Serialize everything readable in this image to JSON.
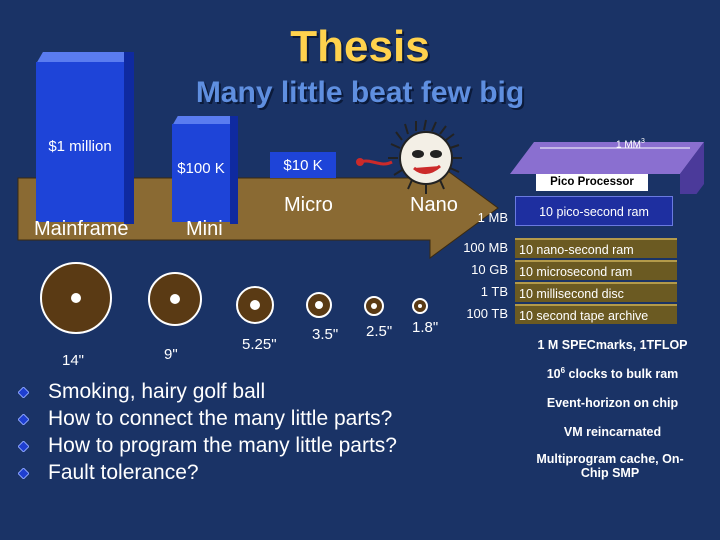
{
  "title": "Thesis",
  "subtitle": "Many little beat few big",
  "timeline": {
    "mainframe_price": "$1 million",
    "mini_price": "$100 K",
    "micro_price": "$10 K",
    "mainframe_label": "Mainframe",
    "mini_label": "Mini",
    "micro_label": "Micro",
    "nano_label": "Nano"
  },
  "chip": {
    "size_label": "1 MM",
    "name": "Pico Processor",
    "superscript": "3"
  },
  "memory_sizes": [
    "1 MB",
    "100 MB",
    "10 GB",
    "1 TB",
    "100 TB"
  ],
  "memory_layers": [
    "10 pico-second ram",
    "10 nano-second ram",
    "10 microsecond ram",
    "10 millisecond disc",
    "10 second tape archive"
  ],
  "disks": [
    "14\"",
    "9\"",
    "5.25\"",
    "3.5\"",
    "2.5\"",
    "1.8\""
  ],
  "bullets": [
    "Smoking, hairy golf ball",
    "How to connect the many little parts?",
    "How to program the many little parts?",
    "Fault tolerance?"
  ],
  "right_notes": {
    "specmarks": "1 M SPECmarks, 1TFLOP",
    "clocks_prefix": "10",
    "clocks_exp": "6",
    "clocks_suffix": " clocks to bulk ram",
    "event_horizon": "Event-horizon on chip",
    "vm": "VM reincarnated",
    "multiprogram": "Multiprogram cache, On-Chip SMP"
  },
  "colors": {
    "background": "#1a3366",
    "title": "#ffd24d",
    "subtitle": "#5f8fe0",
    "arrow": "#8a6a33",
    "box": "#1e44d8",
    "disk": "#5a3a14",
    "bullet": "#1e3fd0",
    "chip_label": "#000000"
  }
}
